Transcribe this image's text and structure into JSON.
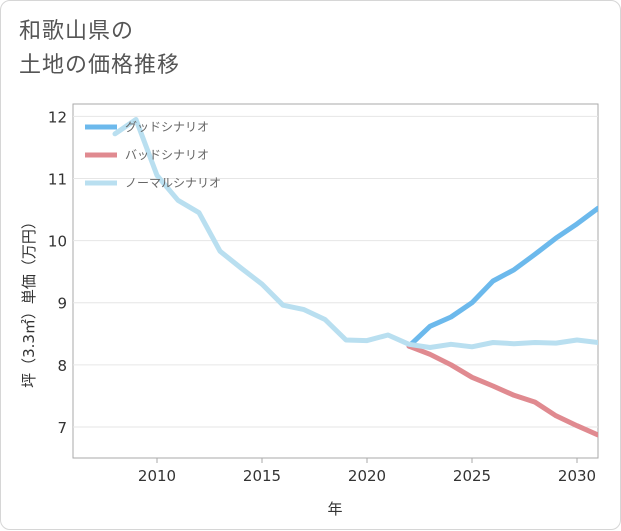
{
  "title_lines": [
    "和歌山県の",
    "土地の価格推移"
  ],
  "chart_data": {
    "type": "line",
    "xlabel": "年",
    "ylabel": "坪（3.3㎡）単価（万円）",
    "xlim": [
      2006,
      2031
    ],
    "ylim": [
      6.5,
      12.2
    ],
    "xticks": [
      2010,
      2015,
      2020,
      2025,
      2030
    ],
    "yticks": [
      7,
      8,
      9,
      10,
      11,
      12
    ],
    "legend_position": "top-left",
    "series": [
      {
        "name": "グッドシナリオ",
        "color": "#6cb9ec",
        "x": [
          2022,
          2023,
          2024,
          2025,
          2026,
          2027,
          2028,
          2029,
          2030,
          2031
        ],
        "y": [
          8.3,
          8.62,
          8.77,
          9.0,
          9.35,
          9.53,
          9.78,
          10.04,
          10.27,
          10.52
        ]
      },
      {
        "name": "バッドシナリオ",
        "color": "#e08a90",
        "x": [
          2022,
          2023,
          2024,
          2025,
          2026,
          2027,
          2028,
          2029,
          2030,
          2031
        ],
        "y": [
          8.3,
          8.17,
          8.0,
          7.8,
          7.66,
          7.51,
          7.4,
          7.18,
          7.02,
          6.87
        ]
      },
      {
        "name": "ノーマルシナリオ",
        "color": "#b9dff0",
        "x": [
          2008,
          2009,
          2010,
          2011,
          2012,
          2013,
          2014,
          2015,
          2016,
          2017,
          2018,
          2019,
          2020,
          2021,
          2022,
          2023,
          2024,
          2025,
          2026,
          2027,
          2028,
          2029,
          2030,
          2031
        ],
        "y": [
          11.72,
          11.95,
          11.05,
          10.65,
          10.45,
          9.83,
          9.56,
          9.3,
          8.96,
          8.89,
          8.73,
          8.4,
          8.39,
          8.48,
          8.33,
          8.28,
          8.33,
          8.29,
          8.36,
          8.34,
          8.36,
          8.35,
          8.4,
          8.36
        ]
      }
    ]
  }
}
